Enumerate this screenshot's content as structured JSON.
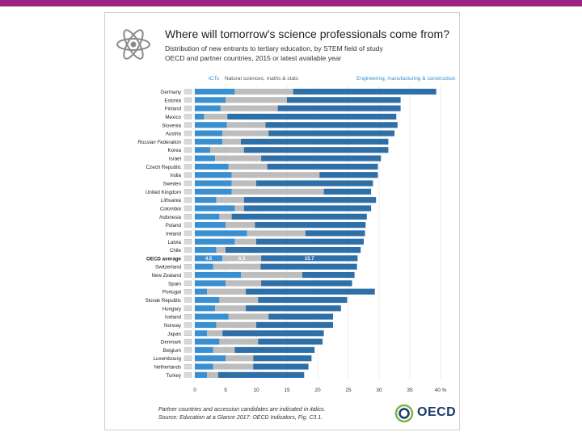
{
  "header": {
    "title": "Where will tomorrow's science professionals come from?",
    "subtitle_line1": "Distribution of new entrants to tertiary education, by STEM field of study",
    "subtitle_line2": "OECD and partner countries, 2015 or latest available year"
  },
  "footer": {
    "note": "Partner countries and accession candidates are indicated in italics.",
    "source": "Source: Education at a Glance 2017: OECD Indicators, Fig. C3.1.",
    "logo": "OECD"
  },
  "colors": {
    "topbar": "#9b2383",
    "ict": "#3a8fd1",
    "natsci": "#bdbdbd",
    "eng": "#2f6fa8",
    "oecd_navy": "#1a3a6b",
    "oecd_green": "#7ab648"
  },
  "chart_data": {
    "type": "bar",
    "orientation": "horizontal",
    "stacked": true,
    "title": "Where will tomorrow's science professionals come from?",
    "xlabel": "",
    "x_unit": "%",
    "xlim": [
      0,
      40
    ],
    "xticks": [
      0,
      5,
      10,
      15,
      20,
      25,
      30,
      35,
      40
    ],
    "xtick_labels": [
      "0",
      "5",
      "10",
      "15",
      "20",
      "25",
      "30",
      "35",
      "40 %"
    ],
    "legend": [
      "ICTs",
      "Natural sciences, maths & stats",
      "Engineering, manufacturing & construction"
    ],
    "legend_position": "top",
    "highlight_row": "OECD average",
    "highlight_labels": [
      "4.5",
      "6.3",
      "15.7"
    ],
    "categories": [
      "Germany",
      "Estonia",
      "Finland",
      "Mexico",
      "Slovenia",
      "Austria",
      "Russian Federation",
      "Korea",
      "Israel",
      "Czech Republic",
      "India",
      "Sweden",
      "United Kingdom",
      "Lithuania",
      "Colombia",
      "Indonesia",
      "Poland",
      "Ireland",
      "Latvia",
      "Chile",
      "OECD average",
      "Switzerland",
      "New Zealand",
      "Spain",
      "Portugal",
      "Slovak Republic",
      "Hungary",
      "Iceland",
      "Norway",
      "Japan",
      "Denmark",
      "Belgium",
      "Luxembourg",
      "Netherlands",
      "Turkey"
    ],
    "italic": [
      false,
      false,
      false,
      false,
      false,
      false,
      true,
      false,
      false,
      false,
      false,
      false,
      false,
      true,
      true,
      true,
      false,
      false,
      false,
      false,
      false,
      false,
      false,
      false,
      false,
      false,
      false,
      false,
      false,
      false,
      false,
      false,
      false,
      false,
      false
    ],
    "series": [
      {
        "name": "ICTs",
        "values": [
          6.5,
          5,
          4.2,
          1.5,
          5.2,
          4.5,
          4.5,
          2.5,
          3.3,
          5.5,
          6,
          6,
          6,
          3.5,
          6.5,
          4,
          5,
          8.5,
          6.5,
          3.5,
          4.5,
          3,
          7.5,
          5,
          2,
          4,
          3.3,
          5.5,
          3.5,
          2,
          4,
          3,
          5,
          3,
          2
        ]
      },
      {
        "name": "Natural sciences, maths & stats",
        "values": [
          9.5,
          10,
          9.3,
          3.8,
          6.3,
          7.5,
          3,
          5.5,
          7.5,
          6.3,
          14.3,
          4,
          15,
          4.5,
          1.5,
          2,
          4.8,
          9.5,
          3.5,
          1.5,
          6.3,
          7.7,
          10,
          5.8,
          6.3,
          6.3,
          5,
          6.5,
          6.5,
          2.5,
          6.3,
          3.5,
          4.5,
          6.5,
          1.8
        ]
      },
      {
        "name": "Engineering, manufacturing & construction",
        "values": [
          23.3,
          18.5,
          20,
          27.5,
          21.5,
          20.5,
          24,
          23.5,
          19.5,
          18,
          9.5,
          19,
          7.7,
          21.5,
          20.7,
          22,
          18,
          9.7,
          17.5,
          22,
          15.7,
          15.7,
          8.5,
          14.8,
          21,
          14.5,
          15.5,
          10.5,
          12.5,
          16.5,
          10.5,
          13,
          9.5,
          9,
          14
        ]
      }
    ]
  }
}
